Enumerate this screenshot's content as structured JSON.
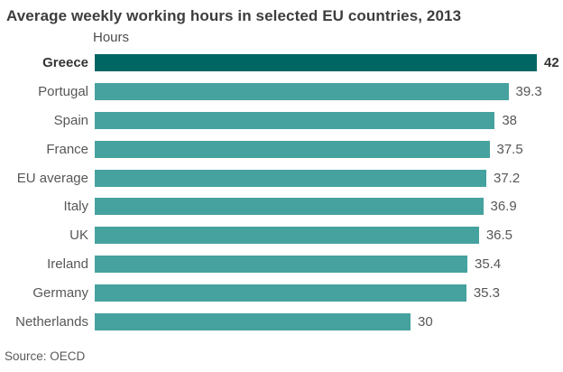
{
  "header": {
    "title": "Average weekly working hours in selected EU countries, 2013",
    "axis_label": "Hours"
  },
  "footer": {
    "source": "Source: OECD"
  },
  "chart_data": {
    "type": "bar",
    "orientation": "horizontal",
    "title": "Average weekly working hours in selected EU countries, 2013",
    "xlabel": "Hours",
    "ylabel": "",
    "xlim": [
      0,
      42
    ],
    "grid": false,
    "legend": false,
    "categories": [
      "Greece",
      "Portugal",
      "Spain",
      "France",
      "EU average",
      "Italy",
      "UK",
      "Ireland",
      "Germany",
      "Netherlands"
    ],
    "values": [
      42,
      39.3,
      38,
      37.5,
      37.2,
      36.9,
      36.5,
      35.4,
      35.3,
      30
    ],
    "value_labels": [
      "42",
      "39.3",
      "38",
      "37.5",
      "37.2",
      "36.9",
      "36.5",
      "35.4",
      "35.3",
      "30"
    ],
    "highlight_index": 0,
    "colors": {
      "highlight_bar": "#006663",
      "bar": "#46A29E"
    },
    "source": "Source: OECD"
  }
}
